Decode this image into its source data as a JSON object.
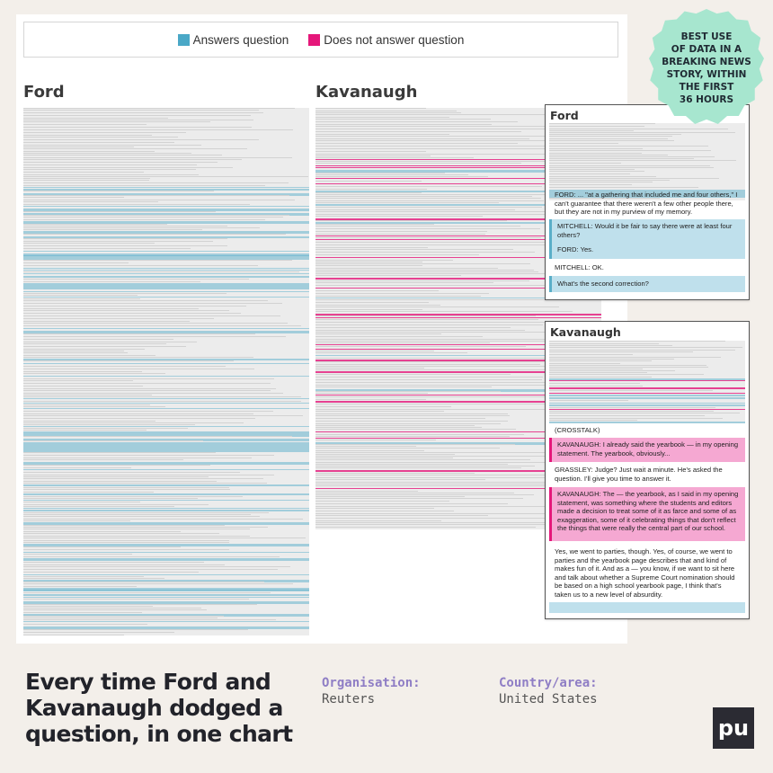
{
  "legend": {
    "answers": {
      "label": "Answers question",
      "color": "#4aa8c7"
    },
    "dodges": {
      "label": "Does not answer question",
      "color": "#e5177a"
    }
  },
  "main": {
    "ford_title": "Ford",
    "kavanaugh_title": "Kavanaugh"
  },
  "inset_ford": {
    "title": "Ford",
    "lines": [
      {
        "text": "FORD: ... \"at a gathering that included me and four others,\" I can't guarantee that there weren't a few other people there, but they are not in my purview of my memory.",
        "kind": "plain"
      },
      {
        "text": "MITCHELL: Would it be fair to say there were at least four others?",
        "kind": "blue"
      },
      {
        "text": "FORD: Yes.",
        "kind": "blue"
      },
      {
        "text": "MITCHELL: OK.",
        "kind": "plain"
      },
      {
        "text": "What's the second correction?",
        "kind": "blue"
      }
    ]
  },
  "inset_kavanaugh": {
    "title": "Kavanaugh",
    "lines": [
      {
        "text": "(CROSSTALK)",
        "kind": "plain"
      },
      {
        "text": "KAVANAUGH: I already said the yearbook — in my opening statement. The yearbook, obviously...",
        "kind": "pink"
      },
      {
        "text": "GRASSLEY: Judge? Just wait a minute. He's asked the question. I'll give you time to answer it.",
        "kind": "plain"
      },
      {
        "text": "KAVANAUGH: The — the yearbook, as I said in my opening statement, was something where the students and editors made a decision to treat some of it as farce and some of as exaggeration, some of it celebrating things that don't reflect the things that were really the central part of our school.",
        "kind": "pink"
      },
      {
        "text": "Yes, we went to parties, though. Yes, of course, we went to parties and the yearbook page describes that and kind of makes fun of it. And as a — you know, if we want to sit here and talk about whether a Supreme Court nomination should be based on a high school yearbook page, I think that's taken us to a new level of absurdity.",
        "kind": "plain"
      }
    ]
  },
  "badge": {
    "text": "BEST USE\nOF DATA IN A\nBREAKING NEWS\nSTORY, WITHIN\nTHE FIRST\n36 HOURS"
  },
  "footer": {
    "headline": "Every time Ford and\nKavanaugh dodged a\nquestion, in one chart",
    "org_label": "Organisation:",
    "org_value": "Reuters",
    "country_label": "Country/area:",
    "country_value": "United States",
    "logo": "pu"
  }
}
